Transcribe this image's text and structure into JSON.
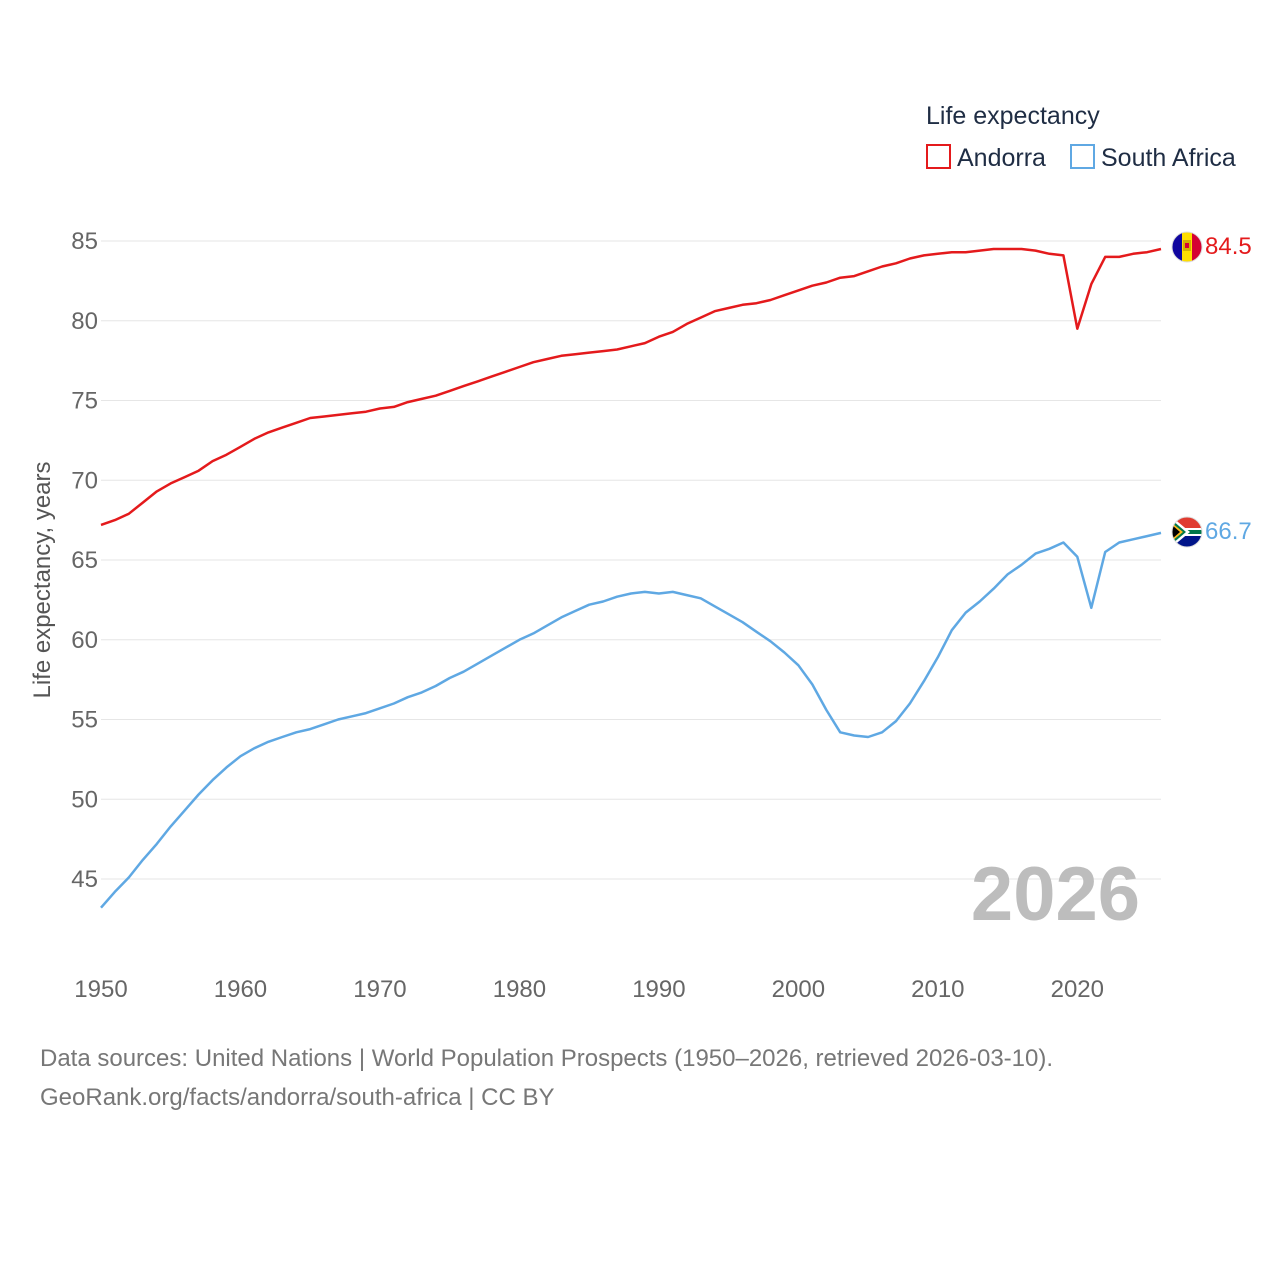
{
  "chart_data": {
    "type": "line",
    "title": "",
    "xlabel": "",
    "ylabel": "Life expectancy, years",
    "xlim": [
      1950,
      2026
    ],
    "ylim": [
      42.5,
      87
    ],
    "x_ticks": [
      1950,
      1960,
      1970,
      1980,
      1990,
      2000,
      2010,
      2020
    ],
    "y_ticks": [
      45,
      50,
      55,
      60,
      65,
      70,
      75,
      80,
      85
    ],
    "grid": true,
    "legend": {
      "title": "Life expectancy",
      "position": "top-right",
      "entries": [
        "Andorra",
        "South Africa"
      ]
    },
    "year_watermark": "2026",
    "x": [
      1950,
      1951,
      1952,
      1953,
      1954,
      1955,
      1956,
      1957,
      1958,
      1959,
      1960,
      1961,
      1962,
      1963,
      1964,
      1965,
      1966,
      1967,
      1968,
      1969,
      1970,
      1971,
      1972,
      1973,
      1974,
      1975,
      1976,
      1977,
      1978,
      1979,
      1980,
      1981,
      1982,
      1983,
      1984,
      1985,
      1986,
      1987,
      1988,
      1989,
      1990,
      1991,
      1992,
      1993,
      1994,
      1995,
      1996,
      1997,
      1998,
      1999,
      2000,
      2001,
      2002,
      2003,
      2004,
      2005,
      2006,
      2007,
      2008,
      2009,
      2010,
      2011,
      2012,
      2013,
      2014,
      2015,
      2016,
      2017,
      2018,
      2019,
      2020,
      2021,
      2022,
      2023,
      2024,
      2025,
      2026
    ],
    "series": [
      {
        "name": "Andorra",
        "color": "#e41a1c",
        "end_label": "84.5",
        "values": [
          67.2,
          67.5,
          67.9,
          68.6,
          69.3,
          69.8,
          70.2,
          70.6,
          71.2,
          71.6,
          72.1,
          72.6,
          73.0,
          73.3,
          73.6,
          73.9,
          74.0,
          74.1,
          74.2,
          74.3,
          74.5,
          74.6,
          74.9,
          75.1,
          75.3,
          75.6,
          75.9,
          76.2,
          76.5,
          76.8,
          77.1,
          77.4,
          77.6,
          77.8,
          77.9,
          78.0,
          78.1,
          78.2,
          78.4,
          78.6,
          79.0,
          79.3,
          79.8,
          80.2,
          80.6,
          80.8,
          81.0,
          81.1,
          81.3,
          81.6,
          81.9,
          82.2,
          82.4,
          82.7,
          82.8,
          83.1,
          83.4,
          83.6,
          83.9,
          84.1,
          84.2,
          84.3,
          84.3,
          84.4,
          84.5,
          84.5,
          84.5,
          84.4,
          84.2,
          84.1,
          79.5,
          82.3,
          84.0,
          84.0,
          84.2,
          84.3,
          84.5
        ]
      },
      {
        "name": "South Africa",
        "color": "#5fa8e3",
        "end_label": "66.7",
        "values": [
          43.2,
          44.2,
          45.1,
          46.2,
          47.2,
          48.3,
          49.3,
          50.3,
          51.2,
          52.0,
          52.7,
          53.2,
          53.6,
          53.9,
          54.2,
          54.4,
          54.7,
          55.0,
          55.2,
          55.4,
          55.7,
          56.0,
          56.4,
          56.7,
          57.1,
          57.6,
          58.0,
          58.5,
          59.0,
          59.5,
          60.0,
          60.4,
          60.9,
          61.4,
          61.8,
          62.2,
          62.4,
          62.7,
          62.9,
          63.0,
          62.9,
          63.0,
          62.8,
          62.6,
          62.1,
          61.6,
          61.1,
          60.5,
          59.9,
          59.2,
          58.4,
          57.2,
          55.6,
          54.2,
          54.0,
          53.9,
          54.2,
          54.9,
          56.0,
          57.4,
          58.9,
          60.6,
          61.7,
          62.4,
          63.2,
          64.1,
          64.7,
          65.4,
          65.7,
          66.1,
          65.2,
          62.0,
          65.5,
          66.1,
          66.3,
          66.5,
          66.7
        ]
      }
    ]
  },
  "source": {
    "line1": "Data sources: United Nations | World Population Prospects (1950–2026, retrieved 2026-03-10).",
    "line2": "GeoRank.org/facts/andorra/south-africa | CC BY"
  }
}
